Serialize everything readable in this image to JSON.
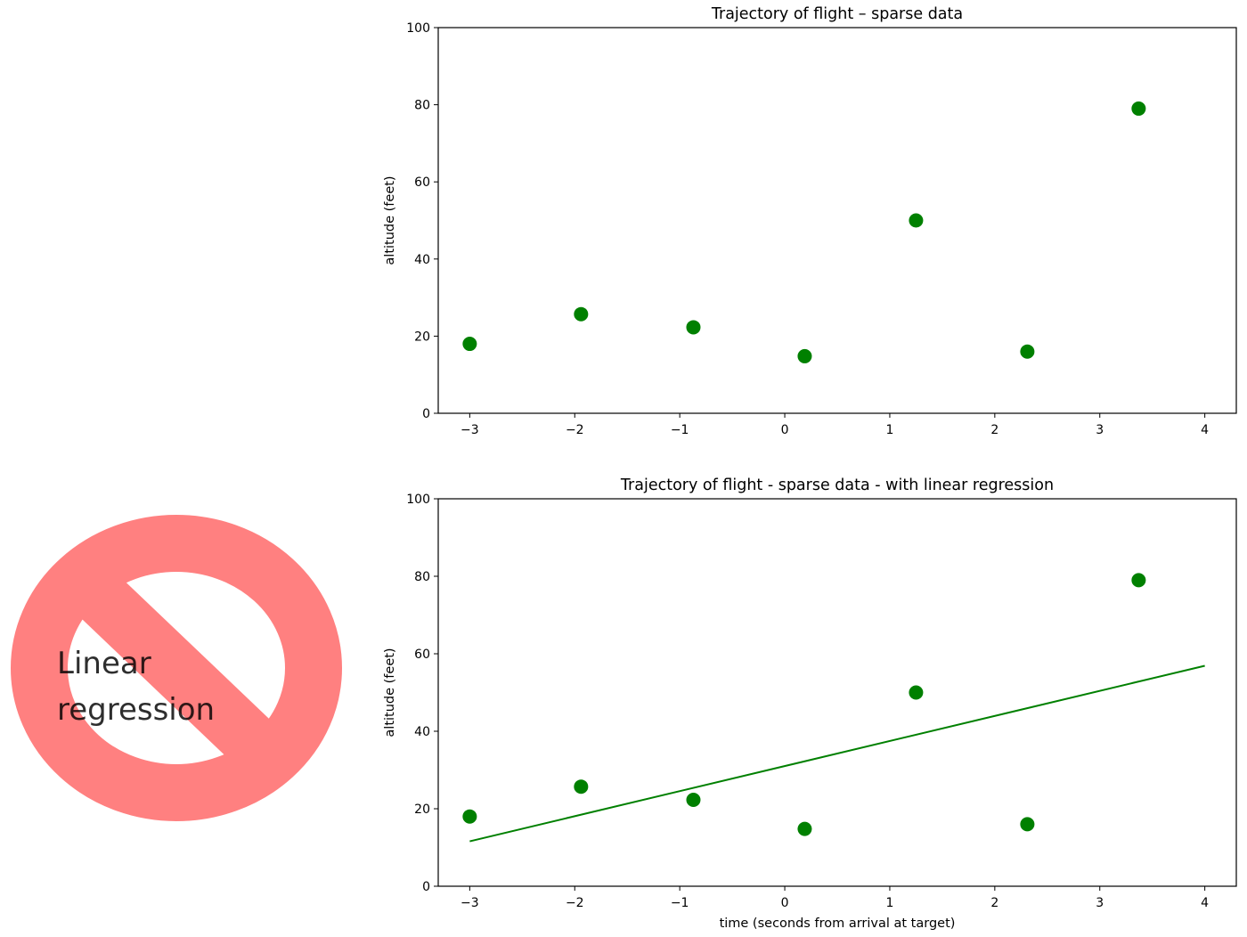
{
  "sign": {
    "text_line1": "Linear",
    "text_line2": "regression",
    "circle_color": "#ff8080",
    "text_color": "#000000"
  },
  "chart_data": [
    {
      "type": "scatter",
      "title": "Trajectory of flight  –  sparse data",
      "xlabel": "",
      "ylabel": "altitude (feet)",
      "xlim": [
        -3.3,
        4.3
      ],
      "ylim": [
        0,
        100
      ],
      "xticks": [
        -3,
        -2,
        -1,
        0,
        1,
        2,
        3,
        4
      ],
      "xtick_labels": [
        "−3",
        "−2",
        "−1",
        "0",
        "1",
        "2",
        "3",
        "4"
      ],
      "yticks": [
        0,
        20,
        40,
        60,
        80,
        100
      ],
      "ytick_labels": [
        "0",
        "20",
        "40",
        "60",
        "80",
        "100"
      ],
      "grid": false,
      "series": [
        {
          "type": "scatter",
          "color": "#008000",
          "x": [
            -3.0,
            -1.94,
            -0.87,
            0.19,
            1.25,
            2.31,
            3.37
          ],
          "y": [
            18,
            25.7,
            22.3,
            14.8,
            50,
            16,
            79
          ]
        }
      ]
    },
    {
      "type": "scatter",
      "title": "Trajectory of flight - sparse data -  with linear regression",
      "xlabel": "time (seconds from arrival at target)",
      "ylabel": "altitude (feet)",
      "xlim": [
        -3.3,
        4.3
      ],
      "ylim": [
        0,
        100
      ],
      "xticks": [
        -3,
        -2,
        -1,
        0,
        1,
        2,
        3,
        4
      ],
      "xtick_labels": [
        "−3",
        "−2",
        "−1",
        "0",
        "1",
        "2",
        "3",
        "4"
      ],
      "yticks": [
        0,
        20,
        40,
        60,
        80,
        100
      ],
      "ytick_labels": [
        "0",
        "20",
        "40",
        "60",
        "80",
        "100"
      ],
      "grid": false,
      "series": [
        {
          "type": "scatter",
          "color": "#008000",
          "x": [
            -3.0,
            -1.94,
            -0.87,
            0.19,
            1.25,
            2.31,
            3.37
          ],
          "y": [
            18,
            25.7,
            22.3,
            14.8,
            50,
            16,
            79
          ]
        },
        {
          "type": "line",
          "color": "#008000",
          "x": [
            -3.0,
            4.0
          ],
          "y": [
            11.6,
            56.9
          ]
        }
      ]
    }
  ]
}
